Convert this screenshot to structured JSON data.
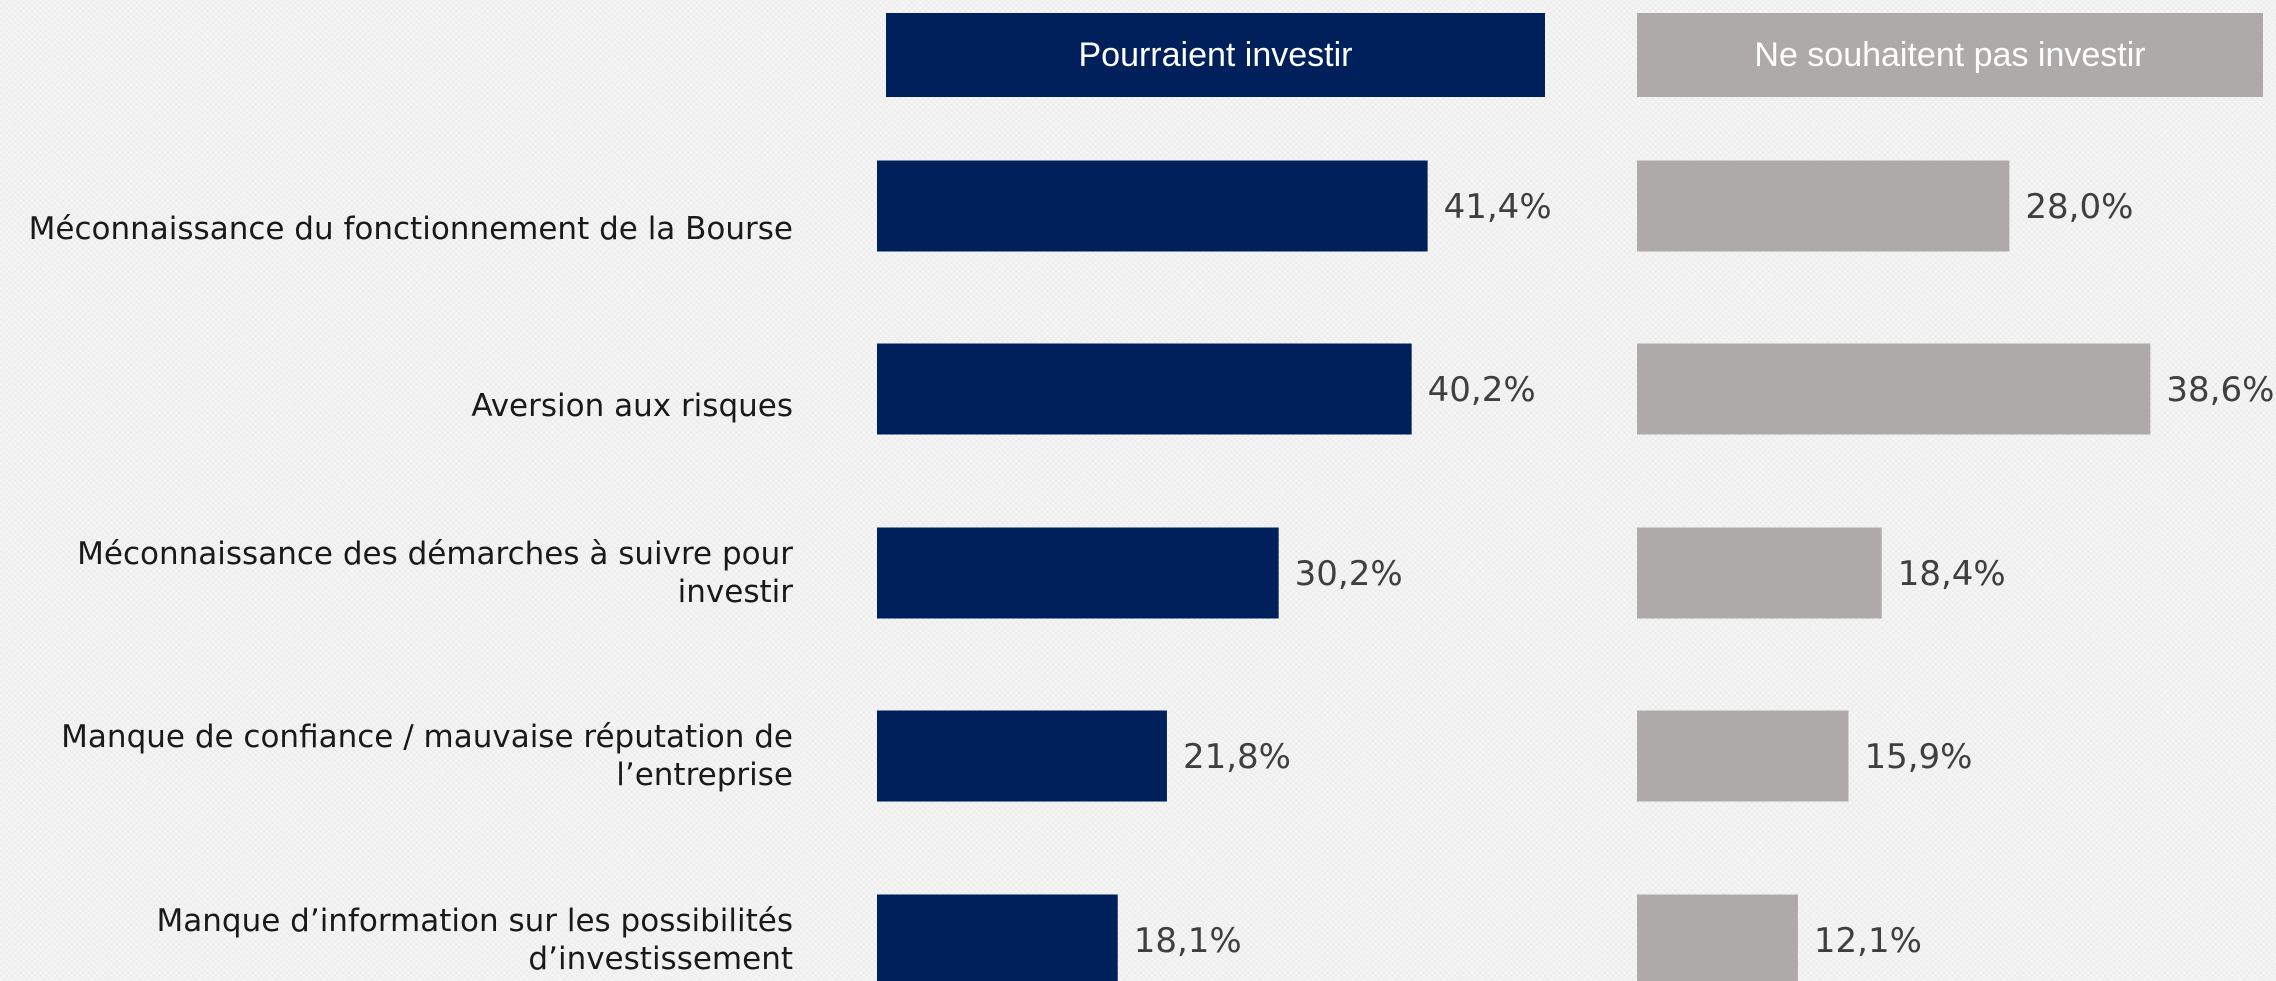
{
  "chart_data": {
    "type": "bar",
    "orientation": "horizontal",
    "categories": [
      "Méconnaissance du fonctionnement de la Bourse",
      "Aversion aux risques",
      "Méconnaissance des démarches à suivre pour investir",
      "Manque de confiance / mauvaise réputation de l’entreprise",
      "Manque d’information sur les possibilités d’investissement"
    ],
    "series": [
      {
        "name": "Pourraient investir",
        "color": "#00205b",
        "values": [
          41.4,
          40.2,
          30.2,
          21.8,
          18.1
        ],
        "labels": [
          "41,4%",
          "40,2%",
          "30,2%",
          "21,8%",
          "18,1%"
        ]
      },
      {
        "name": "Ne souhaitent pas investir",
        "color": "#aeaaaa",
        "values": [
          28.0,
          38.6,
          18.4,
          15.9,
          12.1
        ],
        "labels": [
          "28,0%",
          "38,6%",
          "18,4%",
          "15,9%",
          "12,1%"
        ]
      }
    ],
    "unit": "%",
    "legend_position": "top",
    "grid": false
  },
  "colors": {
    "label_text": "#1a1a1a",
    "value_text": "#3f3f3f"
  }
}
